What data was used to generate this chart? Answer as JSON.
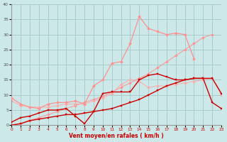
{
  "x": [
    0,
    1,
    2,
    3,
    4,
    5,
    6,
    7,
    8,
    9,
    10,
    11,
    12,
    13,
    14,
    15,
    16,
    17,
    18,
    19,
    20,
    21,
    22,
    23
  ],
  "line_dark1": [
    1,
    2.5,
    3,
    4,
    5,
    5,
    5.5,
    3,
    0.5,
    4.5,
    10.5,
    11,
    11,
    11,
    15,
    16.5,
    17,
    16,
    15,
    15,
    15.5,
    15.5,
    7.5,
    5.5
  ],
  "line_dark2": [
    0,
    0.5,
    1.5,
    2,
    2.5,
    3,
    3.5,
    3.5,
    4,
    4.5,
    5,
    5.5,
    6.5,
    7.5,
    8.5,
    10,
    11.5,
    13,
    14,
    15,
    15.5,
    15.5,
    15.5,
    10.5
  ],
  "line_pink1": [
    9,
    7,
    6,
    5.5,
    7,
    7.5,
    7.5,
    8,
    7,
    13,
    15,
    20.5,
    21,
    27,
    36,
    32,
    31,
    30,
    30.5,
    30,
    22,
    null,
    null,
    null
  ],
  "line_pink2": [
    8,
    6.5,
    6,
    6,
    6,
    6.5,
    7,
    7,
    7,
    8,
    9,
    10.5,
    13.5,
    15,
    14.5,
    12.5,
    13,
    13,
    13.5,
    14,
    14.5,
    15,
    15.5,
    10
  ],
  "line_pink3": [
    0,
    0.5,
    1.5,
    2.5,
    3.5,
    4.5,
    5.5,
    6.5,
    7.5,
    8.5,
    9.5,
    11,
    12.5,
    14,
    15.5,
    17,
    19,
    21,
    23,
    25,
    27,
    29,
    30,
    null
  ],
  "background_color": "#cce8e8",
  "grid_color": "#aacccc",
  "line_dark_color": "#cc0000",
  "line_pink_color": "#ff9090",
  "line_pink2_color": "#ffaaaa",
  "xlabel": "Vent moyen/en rafales ( km/h )",
  "ylim": [
    0,
    40
  ],
  "xlim": [
    0,
    23
  ],
  "yticks": [
    0,
    5,
    10,
    15,
    20,
    25,
    30,
    35,
    40
  ],
  "xticks": [
    0,
    1,
    2,
    3,
    4,
    5,
    6,
    7,
    8,
    9,
    10,
    11,
    12,
    13,
    14,
    15,
    16,
    17,
    18,
    19,
    20,
    21,
    22,
    23
  ]
}
